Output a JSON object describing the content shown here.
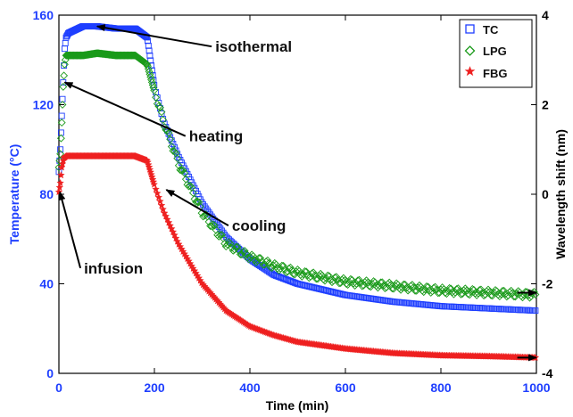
{
  "chart_data": {
    "type": "scatter",
    "xlabel": "Time (min)",
    "ylabel_left": "Temperature (°C)",
    "ylabel_right": "Wavelength shift (nm)",
    "xlim": [
      0,
      1000
    ],
    "ylim_left": [
      0,
      160
    ],
    "ylim_right": [
      -4,
      4
    ],
    "x_ticks": [
      "0",
      "200",
      "400",
      "600",
      "800",
      "1000"
    ],
    "y_left_ticks": [
      "0",
      "40",
      "80",
      "120",
      "160"
    ],
    "y_right_ticks": [
      "-4",
      "-2",
      "0",
      "2",
      "4"
    ],
    "grid": false,
    "legend_position": "top-right",
    "colors": {
      "left_axis": "#1f3fff",
      "TC": "#1f3fff",
      "LPG": "#1a9a1a",
      "FBG": "#ee2020"
    },
    "series": [
      {
        "name": "TC",
        "axis": "left",
        "marker": "square",
        "x": [
          0,
          3,
          6,
          9,
          12,
          15,
          20,
          30,
          50,
          80,
          120,
          160,
          185,
          200,
          220,
          250,
          300,
          350,
          400,
          450,
          500,
          600,
          700,
          800,
          900,
          1000
        ],
        "y": [
          90,
          100,
          115,
          130,
          145,
          150,
          152,
          153,
          155,
          155,
          154,
          154,
          150,
          128,
          112,
          97,
          76,
          61,
          51,
          44,
          40,
          35,
          32,
          30,
          29,
          28
        ]
      },
      {
        "name": "LPG",
        "axis": "right",
        "marker": "diamond",
        "x": [
          0,
          3,
          6,
          9,
          12,
          15,
          20,
          30,
          50,
          80,
          120,
          160,
          185,
          200,
          220,
          250,
          300,
          350,
          400,
          450,
          500,
          600,
          700,
          800,
          900,
          1000
        ],
        "y": [
          0.6,
          0.9,
          1.6,
          2.4,
          2.9,
          3.1,
          3.1,
          3.1,
          3.1,
          3.15,
          3.1,
          3.1,
          2.9,
          2.3,
          1.6,
          0.7,
          -0.4,
          -1.1,
          -1.4,
          -1.6,
          -1.75,
          -1.95,
          -2.05,
          -2.15,
          -2.2,
          -2.25
        ]
      },
      {
        "name": "FBG",
        "axis": "right",
        "marker": "star",
        "x": [
          0,
          3,
          6,
          10,
          15,
          20,
          30,
          50,
          80,
          120,
          160,
          185,
          200,
          220,
          250,
          300,
          350,
          400,
          450,
          500,
          600,
          700,
          800,
          900,
          1000
        ],
        "y": [
          0.05,
          0.25,
          0.6,
          0.8,
          0.85,
          0.85,
          0.85,
          0.85,
          0.85,
          0.85,
          0.85,
          0.75,
          0.2,
          -0.4,
          -1.1,
          -2.0,
          -2.6,
          -2.95,
          -3.15,
          -3.3,
          -3.45,
          -3.55,
          -3.6,
          -3.62,
          -3.65
        ]
      }
    ],
    "annotations": [
      {
        "text": "isothermal",
        "axis": "left",
        "at": [
          80,
          155
        ],
        "label_at": [
          320,
          146
        ]
      },
      {
        "text": "heating",
        "axis": "left",
        "at": [
          12,
          130
        ],
        "label_at": [
          265,
          106
        ]
      },
      {
        "text": "cooling",
        "axis": "left",
        "at": [
          225,
          82
        ],
        "label_at": [
          355,
          66
        ]
      },
      {
        "text": "infusion",
        "axis": "left",
        "at": [
          2,
          81
        ],
        "label_at": [
          45,
          47
        ]
      },
      {
        "text": "",
        "axis": "right",
        "at": [
          1000,
          -2.2
        ],
        "label_at": [
          960,
          -2.2
        ]
      },
      {
        "text": "",
        "axis": "right",
        "at": [
          1000,
          -3.65
        ],
        "label_at": [
          960,
          -3.65
        ]
      }
    ]
  }
}
